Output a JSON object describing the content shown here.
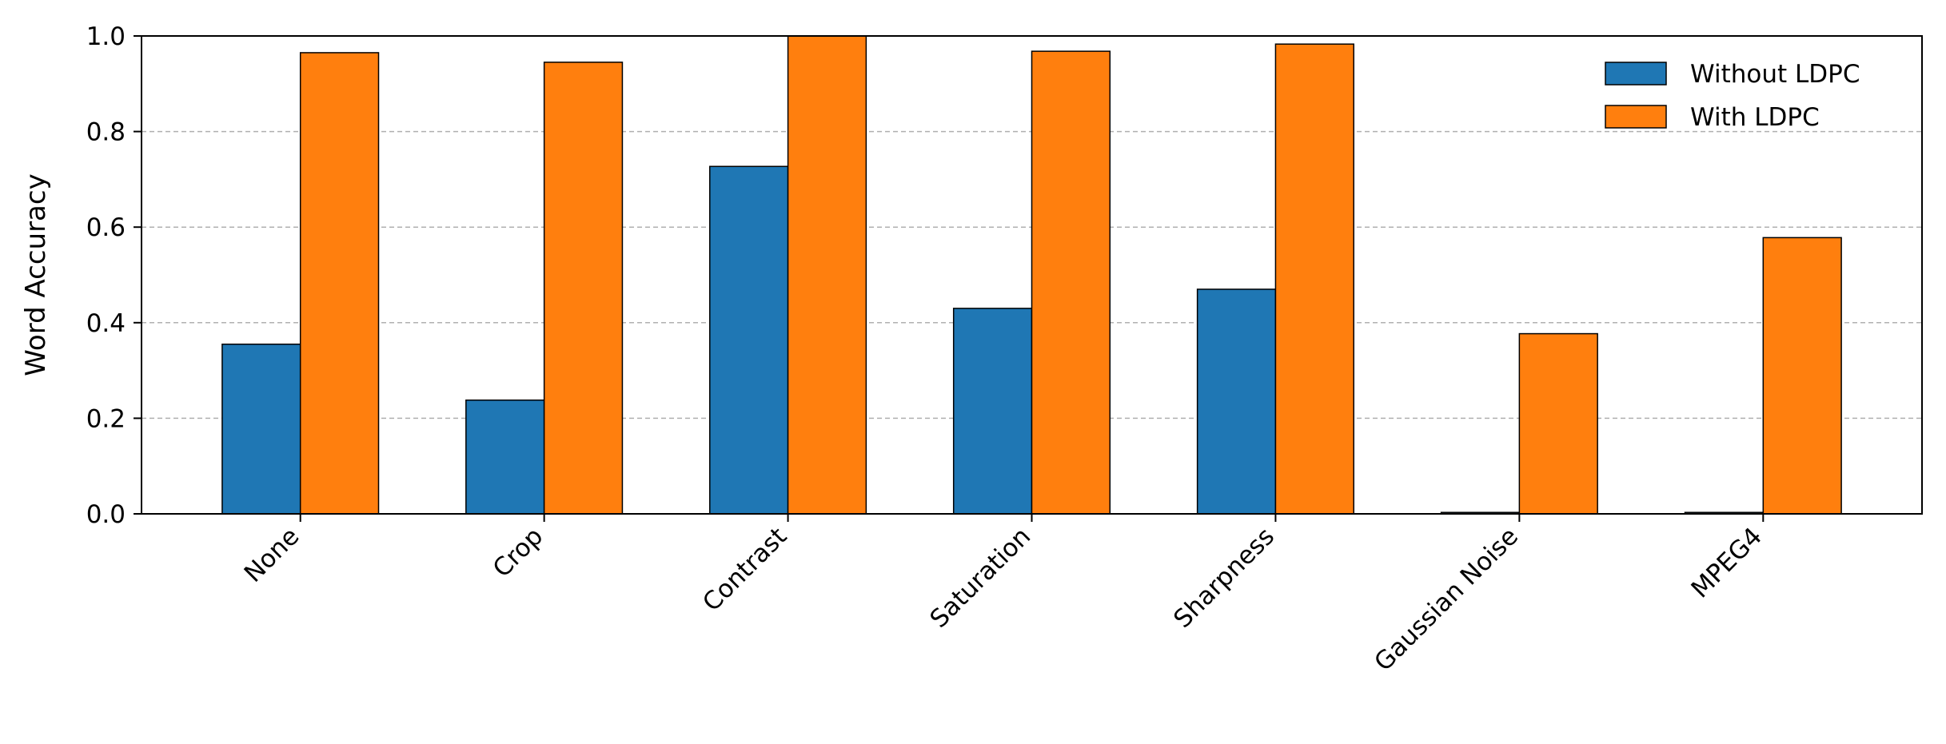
{
  "chart_data": {
    "type": "bar",
    "ylabel": "Word Accuracy",
    "categories": [
      "None",
      "Crop",
      "Contrast",
      "Saturation",
      "Sharpness",
      "Gaussian Noise",
      "MPEG4"
    ],
    "series": [
      {
        "name": "Without LDPC",
        "color": "#1f77b4",
        "values": [
          0.355,
          0.238,
          0.727,
          0.43,
          0.47,
          0.003,
          0.003
        ]
      },
      {
        "name": "With LDPC",
        "color": "#ff7f0e",
        "values": [
          0.965,
          0.945,
          1.0,
          0.968,
          0.983,
          0.377,
          0.578
        ]
      }
    ],
    "ylim": [
      0,
      1
    ],
    "yticks": [
      {
        "value": 0,
        "label": "0.0"
      },
      0.2,
      0.4,
      0.6,
      0.8,
      {
        "value": 1,
        "label": "1.0"
      }
    ],
    "grid": true,
    "legend": "upper right"
  }
}
